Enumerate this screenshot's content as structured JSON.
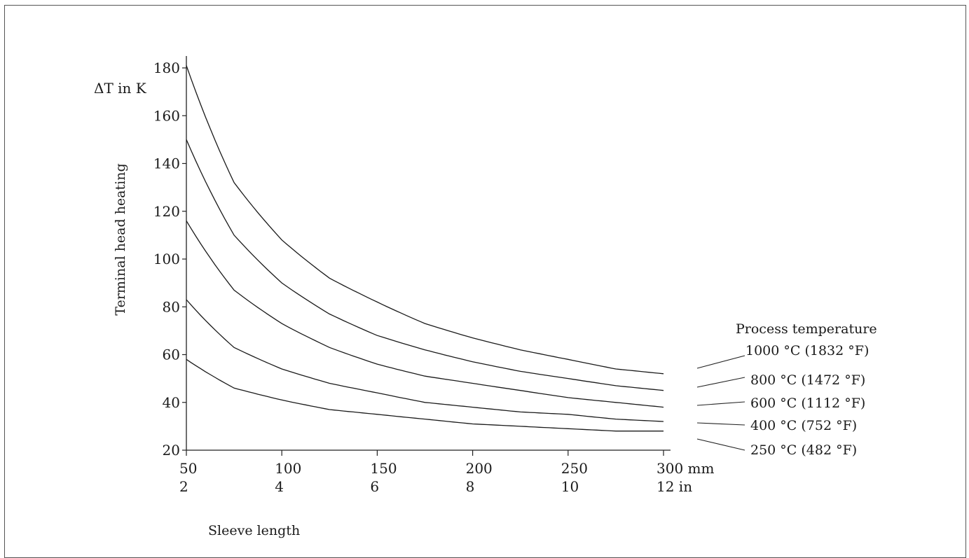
{
  "chart_data": {
    "type": "line",
    "title": "",
    "ylabel": "Terminal head heating",
    "yunit_label": "ΔT in K",
    "xlabel": "Sleeve length",
    "ylim": [
      20,
      180
    ],
    "yticks": [
      20,
      40,
      60,
      80,
      100,
      120,
      140,
      160,
      180
    ],
    "xlim": [
      50,
      300
    ],
    "xticks_mm": [
      50,
      100,
      150,
      200,
      250,
      300
    ],
    "xtick_labels_mm": [
      "50",
      "100",
      "150",
      "200",
      "250",
      "300 mm"
    ],
    "xtick_labels_in": [
      "2",
      "4",
      "6",
      "8",
      "10",
      "12 in"
    ],
    "x": [
      50,
      75,
      100,
      125,
      150,
      175,
      200,
      225,
      250,
      275,
      300
    ],
    "legend_title": "Process temperature",
    "series": [
      {
        "name": "1000 °C (1832 °F)",
        "values": [
          181,
          132,
          108,
          92,
          82,
          73,
          67,
          62,
          58,
          54,
          52
        ]
      },
      {
        "name": "800 °C (1472 °F)",
        "values": [
          150,
          110,
          90,
          77,
          68,
          62,
          57,
          53,
          50,
          47,
          45
        ]
      },
      {
        "name": "600 °C (1112 °F)",
        "values": [
          116,
          87,
          73,
          63,
          56,
          51,
          48,
          45,
          42,
          40,
          38
        ]
      },
      {
        "name": "400 °C (752 °F)",
        "values": [
          83,
          63,
          54,
          48,
          44,
          40,
          38,
          36,
          35,
          33,
          32
        ]
      },
      {
        "name": "250 °C (482 °F)",
        "values": [
          58,
          46,
          41,
          37,
          35,
          33,
          31,
          30,
          29,
          28,
          28
        ]
      }
    ]
  }
}
